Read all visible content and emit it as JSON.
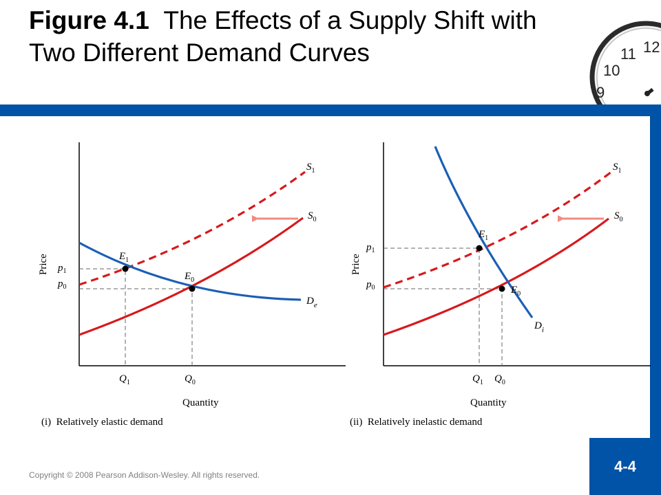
{
  "title": {
    "figure_label": "Figure 4.1",
    "text": "The Effects of a Supply Shift with Two Different Demand Curves"
  },
  "panels": [
    {
      "caption": "(i)  Relatively elastic demand",
      "y_axis": "Price",
      "x_axis": "Quantity",
      "price_levels": [
        {
          "letter": "p",
          "sub": "1"
        },
        {
          "letter": "p",
          "sub": "0"
        }
      ],
      "quantity_levels": [
        {
          "letter": "Q",
          "sub": "1"
        },
        {
          "letter": "Q",
          "sub": "0"
        }
      ],
      "equilibria": [
        {
          "letter": "E",
          "sub": "1"
        },
        {
          "letter": "E",
          "sub": "0"
        }
      ],
      "curves": {
        "supply_new": {
          "letter": "S",
          "sub": "1"
        },
        "supply_old": {
          "letter": "S",
          "sub": "0"
        },
        "demand": {
          "letter": "D",
          "sub": "e"
        }
      }
    },
    {
      "caption": "(ii)  Relatively inelastic demand",
      "y_axis": "Price",
      "x_axis": "Quantity",
      "price_levels": [
        {
          "letter": "p",
          "sub": "1"
        },
        {
          "letter": "p",
          "sub": "0"
        }
      ],
      "quantity_levels": [
        {
          "letter": "Q",
          "sub": "1"
        },
        {
          "letter": "Q",
          "sub": "0"
        }
      ],
      "equilibria": [
        {
          "letter": "E",
          "sub": "1"
        },
        {
          "letter": "E",
          "sub": "0"
        }
      ],
      "curves": {
        "supply_new": {
          "letter": "S",
          "sub": "1"
        },
        "supply_old": {
          "letter": "S",
          "sub": "0"
        },
        "demand": {
          "letter": "D",
          "sub": "i"
        }
      }
    }
  ],
  "colors": {
    "supply": "#d7191c",
    "demand": "#1b5fb4",
    "arrow": "#f08c80",
    "brand": "#0053a6"
  },
  "footer": {
    "copyright": "Copyright © 2008 Pearson Addison-Wesley. All rights reserved.",
    "page_number": "4-4"
  }
}
